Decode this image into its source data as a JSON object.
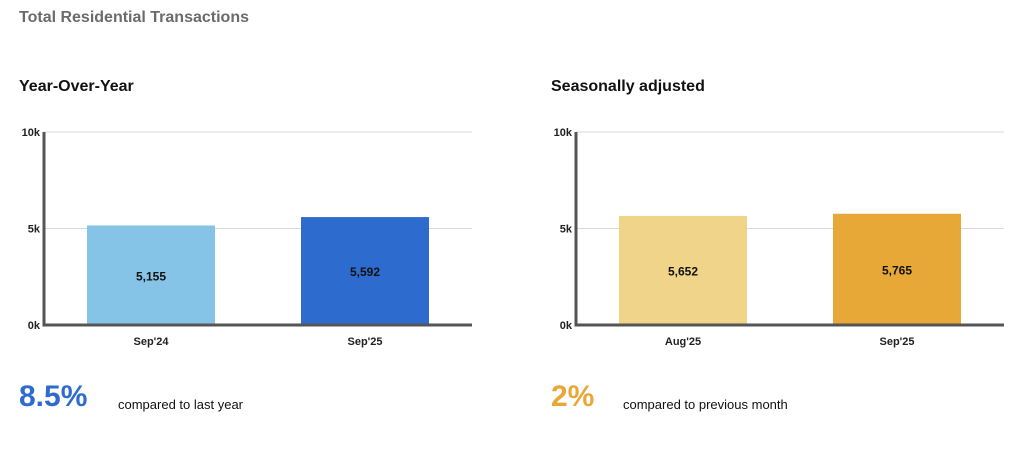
{
  "page": {
    "title": "Total Residential Transactions"
  },
  "colors": {
    "yoy_accent": "#2d6bcf",
    "sa_accent": "#e8a838"
  },
  "panels": [
    {
      "title": "Year-Over-Year",
      "stat_value": "8.5%",
      "stat_caption": "compared to last year",
      "accent": "#2d6bcf"
    },
    {
      "title": "Seasonally adjusted",
      "stat_value": "2%",
      "stat_caption": "compared to previous month",
      "accent": "#e8a838"
    }
  ],
  "chart_data": [
    {
      "type": "bar",
      "title": "Year-Over-Year",
      "categories": [
        "Sep'24",
        "Sep'25"
      ],
      "values": [
        5155,
        5592
      ],
      "value_labels": [
        "5,155",
        "5,592"
      ],
      "bar_colors": [
        "#85c4e6",
        "#2d6bcf"
      ],
      "yticks": [
        0,
        5000,
        10000
      ],
      "ytick_labels": [
        "0k",
        "5k",
        "10k"
      ],
      "ylim": [
        0,
        10000
      ],
      "grid": true
    },
    {
      "type": "bar",
      "title": "Seasonally adjusted",
      "categories": [
        "Aug'25",
        "Sep'25"
      ],
      "values": [
        5652,
        5765
      ],
      "value_labels": [
        "5,652",
        "5,765"
      ],
      "bar_colors": [
        "#f0d489",
        "#e8a838"
      ],
      "yticks": [
        0,
        5000,
        10000
      ],
      "ytick_labels": [
        "0k",
        "5k",
        "10k"
      ],
      "ylim": [
        0,
        10000
      ],
      "grid": true
    }
  ]
}
